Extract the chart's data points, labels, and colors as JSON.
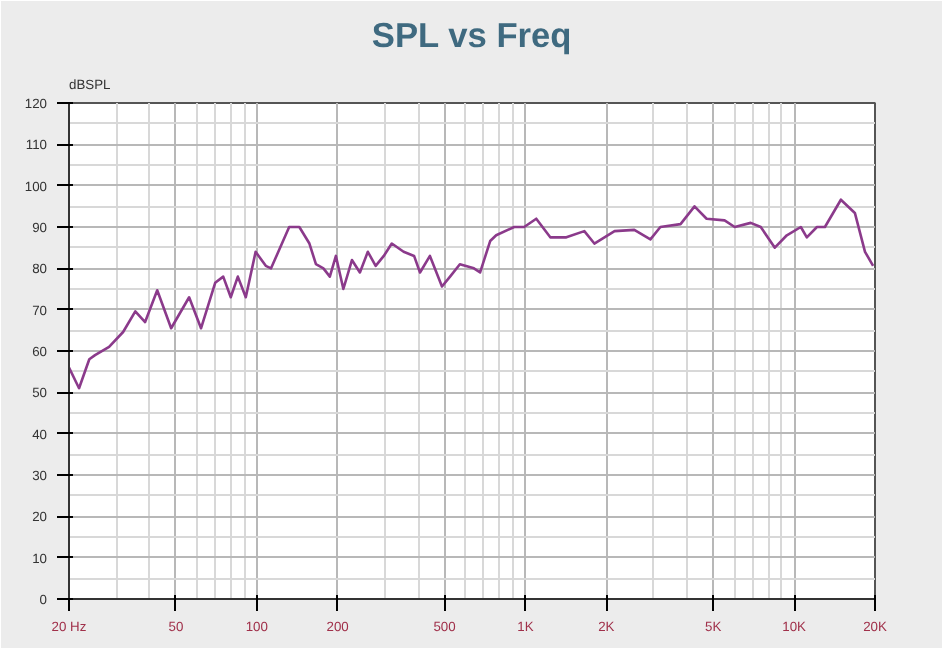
{
  "chart_data": {
    "type": "line",
    "title": "SPL vs Freq",
    "ylabel": "dBSPL",
    "x": [
      20,
      21.8,
      23.8,
      25,
      28.2,
      31.8,
      35.3,
      38.4,
      42.6,
      48,
      56,
      62,
      70,
      75,
      80,
      85,
      91,
      99,
      108,
      113,
      132,
      144,
      157,
      166,
      177,
      187,
      197,
      210,
      226,
      242,
      259,
      277,
      297,
      318,
      352,
      385,
      405,
      441,
      489,
      524,
      570,
      643,
      678,
      739,
      778,
      908,
      989,
      1097,
      1237,
      1420,
      1656,
      1805,
      2146,
      2542,
      2918,
      3178,
      3778,
      4258,
      4723,
      5510,
      6010,
      6893,
      7513,
      8475,
      9394,
      10590,
      11150,
      12160,
      13020,
      14930,
      16830,
      18360,
      19680
    ],
    "series": [
      {
        "color": "#8b3a8b",
        "values": [
          56,
          51,
          58,
          59,
          61,
          64.6,
          69.6,
          67,
          74.7,
          65.5,
          73,
          65.5,
          76.5,
          78,
          73,
          78,
          73,
          84,
          80.6,
          80,
          90,
          90,
          86,
          81,
          80,
          78,
          83,
          75,
          82,
          79,
          84,
          80.6,
          83,
          86,
          84,
          83,
          79,
          83,
          75.6,
          78,
          81,
          80,
          79,
          86.6,
          88,
          90,
          90,
          92,
          87.5,
          87.5,
          89,
          86,
          89,
          89.3,
          87,
          90,
          90.7,
          95,
          92,
          91.6,
          90,
          91,
          90,
          85,
          88,
          90,
          87.5,
          90,
          90,
          96.6,
          93.4,
          84,
          80.6
        ]
      }
    ],
    "log": "x",
    "xlim": [
      20,
      20000
    ],
    "ylim": [
      0,
      120
    ],
    "xticks": [
      {
        "value": 20,
        "label": "20 Hz"
      },
      50,
      100,
      200,
      500,
      {
        "value": 1000,
        "label": "1K"
      },
      {
        "value": 2000,
        "label": "2K"
      },
      {
        "value": 5000,
        "label": "5K"
      },
      {
        "value": 10000,
        "label": "10K"
      },
      {
        "value": 20000,
        "label": "20K"
      }
    ],
    "yticks": [
      0,
      10,
      20,
      30,
      40,
      50,
      60,
      70,
      80,
      90,
      100,
      110,
      120
    ],
    "grid": true,
    "marker": "none",
    "line_style": "solid"
  }
}
